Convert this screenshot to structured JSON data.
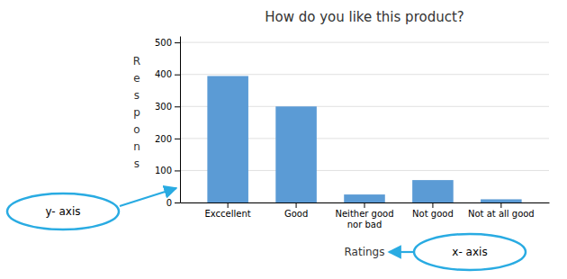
{
  "chart_data": {
    "type": "bar",
    "title": "How do you like this product?",
    "categories": [
      "Exccellent",
      "Good",
      "Neither good\nnor bad",
      "Not good",
      "Not at all good"
    ],
    "values": [
      395,
      300,
      25,
      70,
      10
    ],
    "color": "#5B9BD5",
    "xlabel": "Ratings",
    "ylabel": "Respons",
    "ylim": [
      0,
      520
    ],
    "yticks": [
      0,
      100,
      200,
      300,
      400,
      500
    ],
    "grid": true,
    "annotations": [
      "y- axis",
      "x- axis"
    ]
  }
}
